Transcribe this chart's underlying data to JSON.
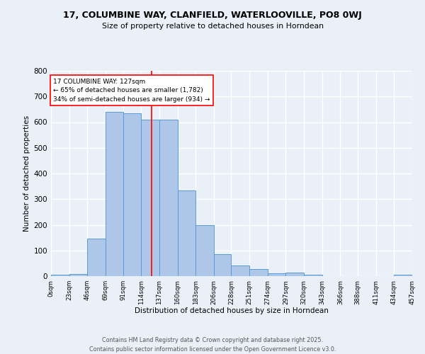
{
  "title_line1": "17, COLUMBINE WAY, CLANFIELD, WATERLOOVILLE, PO8 0WJ",
  "title_line2": "Size of property relative to detached houses in Horndean",
  "bar_heights": [
    5,
    8,
    145,
    640,
    635,
    610,
    610,
    335,
    200,
    85,
    42,
    27,
    12,
    13,
    6,
    0,
    0,
    0,
    0,
    5
  ],
  "bin_edges": [
    0,
    23,
    46,
    69,
    91,
    114,
    137,
    160,
    183,
    206,
    228,
    251,
    274,
    297,
    320,
    343,
    366,
    388,
    411,
    434,
    457
  ],
  "bin_labels": [
    "0sqm",
    "23sqm",
    "46sqm",
    "69sqm",
    "91sqm",
    "114sqm",
    "137sqm",
    "160sqm",
    "183sqm",
    "206sqm",
    "228sqm",
    "251sqm",
    "274sqm",
    "297sqm",
    "320sqm",
    "343sqm",
    "366sqm",
    "388sqm",
    "411sqm",
    "434sqm",
    "457sqm"
  ],
  "bar_color": "#AEC6E8",
  "bar_edge_color": "#5B9BD5",
  "property_line_x": 127,
  "property_line_color": "red",
  "annotation_text": "17 COLUMBINE WAY: 127sqm\n← 65% of detached houses are smaller (1,782)\n34% of semi-detached houses are larger (934) →",
  "annotation_box_color": "white",
  "annotation_box_edge": "red",
  "xlabel": "Distribution of detached houses by size in Horndean",
  "ylabel": "Number of detached properties",
  "ylim": [
    0,
    800
  ],
  "yticks": [
    0,
    100,
    200,
    300,
    400,
    500,
    600,
    700,
    800
  ],
  "footer_line1": "Contains HM Land Registry data © Crown copyright and database right 2025.",
  "footer_line2": "Contains public sector information licensed under the Open Government Licence v3.0.",
  "bg_color": "#EAF0F8",
  "grid_color": "white"
}
